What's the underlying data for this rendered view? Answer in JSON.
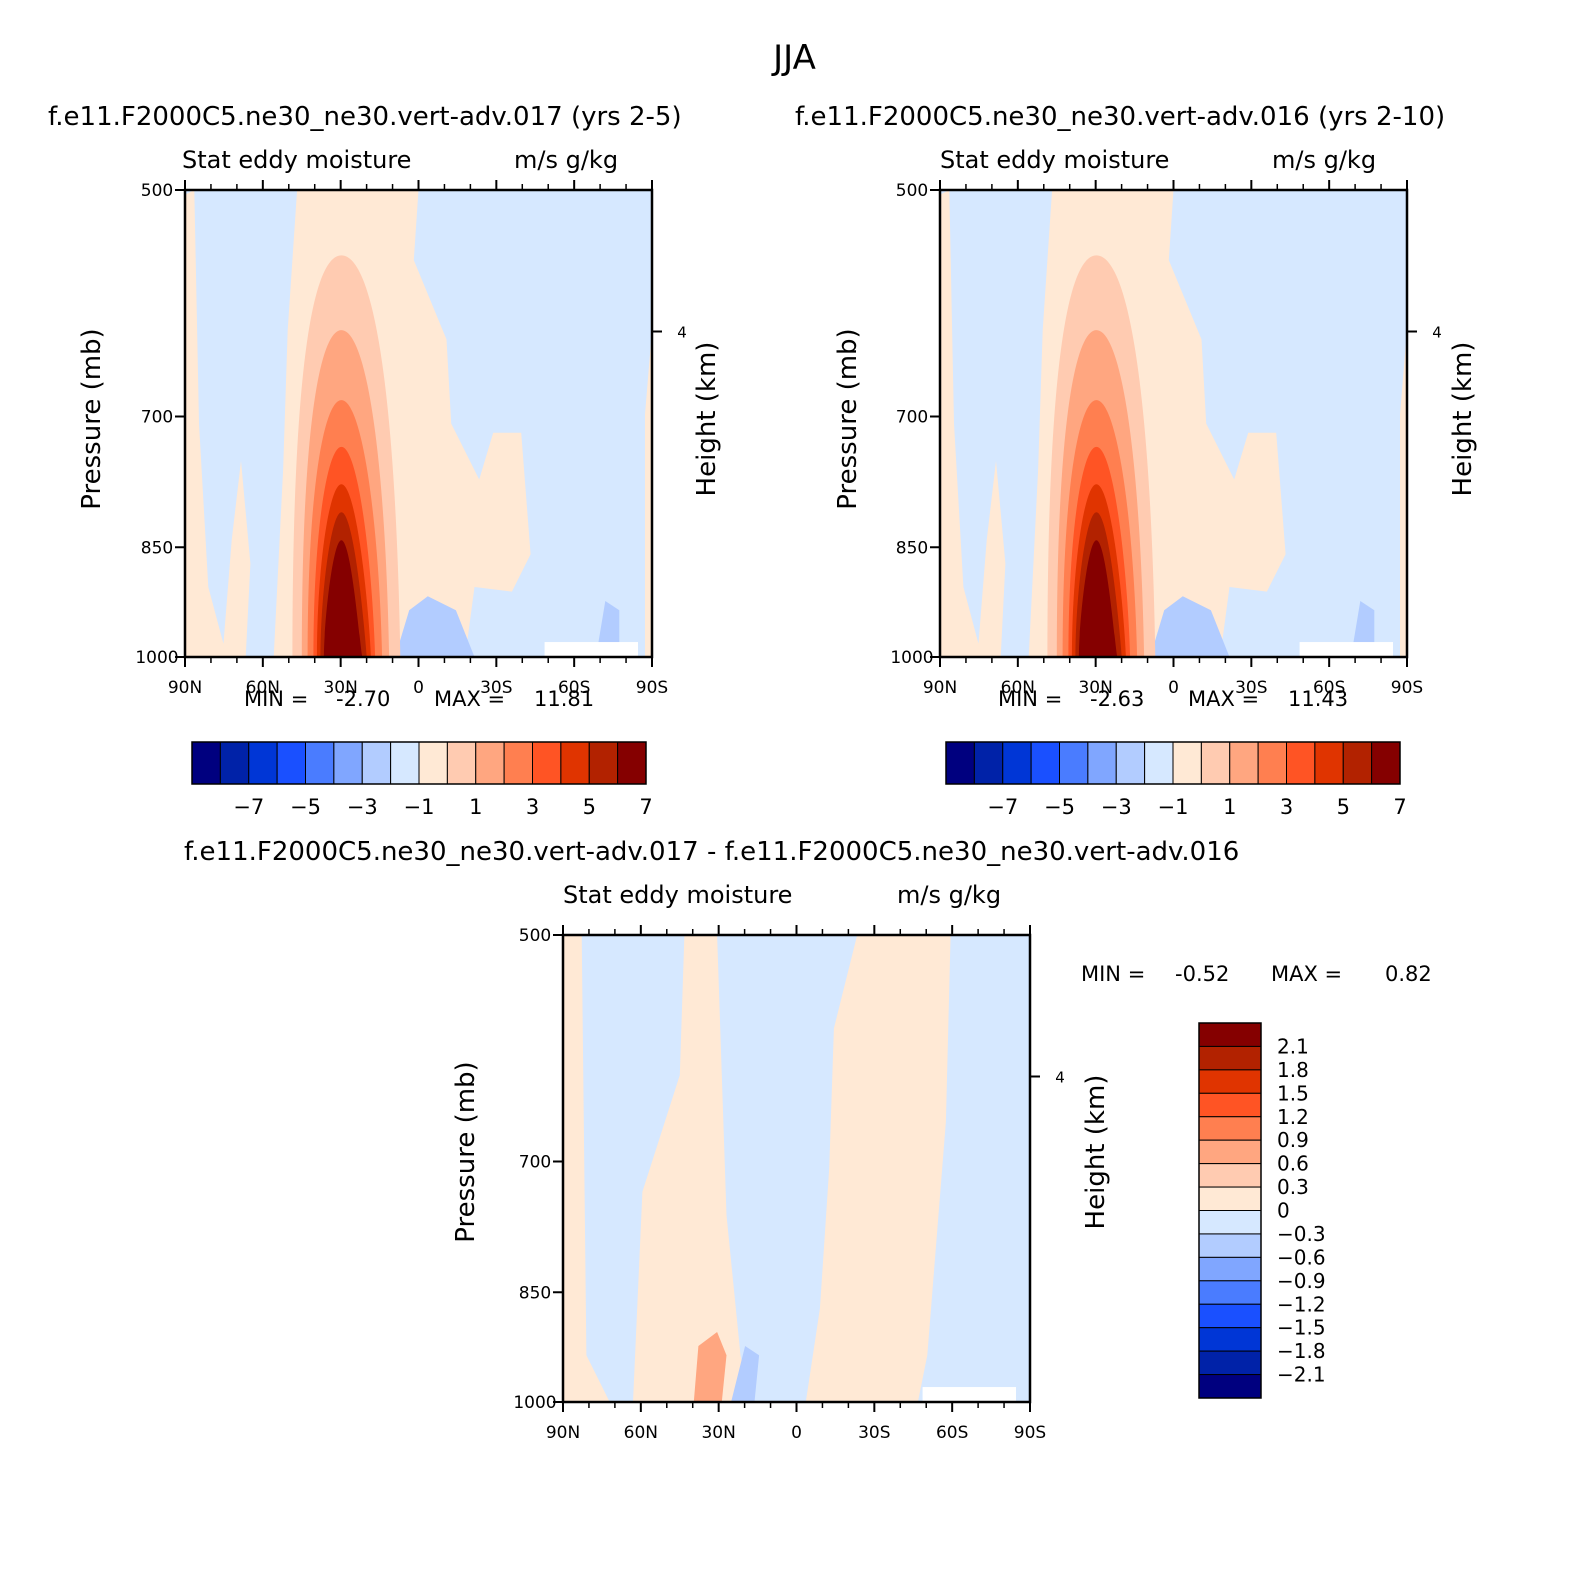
{
  "title": "JJA",
  "colors": {
    "diverging": [
      "#00007f",
      "#0022a8",
      "#0036d6",
      "#1a50ff",
      "#4a7cff",
      "#80a6ff",
      "#b2ccff",
      "#d6e8ff",
      "#ffe9d5",
      "#ffcbb1",
      "#ffa680",
      "#ff7f50",
      "#ff5424",
      "#e03400",
      "#b22200",
      "#850000"
    ]
  },
  "chart_data": [
    {
      "type": "contour",
      "title": "f.e11.F2000C5.ne30_ne30.vert-adv.017 (yrs 2-5)",
      "left_subtitle": "Stat eddy moisture",
      "right_subtitle": "m/s g/kg",
      "ylabel": "Pressure (mb)",
      "y2label": "Height (km)",
      "x_ticks": [
        "90N",
        "60N",
        "30N",
        "0",
        "30S",
        "60S",
        "90S"
      ],
      "y_ticks": [
        "500",
        "700",
        "850",
        "1000"
      ],
      "y2_ticks": [
        "4"
      ],
      "ylim": [
        1000,
        500
      ],
      "min_label": "MIN =",
      "min_value": "-2.70",
      "max_label": "MAX =",
      "max_value": "11.81",
      "colorbar_labels": [
        "-7",
        "-5",
        "-3",
        "-1",
        "1",
        "3",
        "5",
        "7"
      ],
      "levels": [
        -7,
        -6,
        -5,
        -4,
        -3,
        -2,
        -1,
        0,
        1,
        2,
        3,
        4,
        5,
        6,
        7
      ],
      "max_contour_level": 7
    },
    {
      "type": "contour",
      "title": "f.e11.F2000C5.ne30_ne30.vert-adv.016 (yrs 2-10)",
      "left_subtitle": "Stat eddy moisture",
      "right_subtitle": "m/s g/kg",
      "ylabel": "Pressure (mb)",
      "y2label": "Height (km)",
      "x_ticks": [
        "90N",
        "60N",
        "30N",
        "0",
        "30S",
        "60S",
        "90S"
      ],
      "y_ticks": [
        "500",
        "700",
        "850",
        "1000"
      ],
      "y2_ticks": [
        "4"
      ],
      "ylim": [
        1000,
        500
      ],
      "min_label": "MIN =",
      "min_value": "-2.63",
      "max_label": "MAX =",
      "max_value": "11.43",
      "colorbar_labels": [
        "-7",
        "-5",
        "-3",
        "-1",
        "1",
        "3",
        "5",
        "7"
      ],
      "levels": [
        -7,
        -6,
        -5,
        -4,
        -3,
        -2,
        -1,
        0,
        1,
        2,
        3,
        4,
        5,
        6,
        7
      ],
      "max_contour_level": 7
    },
    {
      "type": "contour",
      "title": "f.e11.F2000C5.ne30_ne30.vert-adv.017 - f.e11.F2000C5.ne30_ne30.vert-adv.016",
      "left_subtitle": "Stat eddy moisture",
      "right_subtitle": "m/s g/kg",
      "ylabel": "Pressure (mb)",
      "y2label": "Height (km)",
      "x_ticks": [
        "90N",
        "60N",
        "30N",
        "0",
        "30S",
        "60S",
        "90S"
      ],
      "y_ticks": [
        "500",
        "700",
        "850",
        "1000"
      ],
      "y2_ticks": [
        "4"
      ],
      "ylim": [
        1000,
        500
      ],
      "min_label": "MIN =",
      "min_value": "-0.52",
      "max_label": "MAX =",
      "max_value": "0.82",
      "colorbar_labels": [
        "2.1",
        "1.8",
        "1.5",
        "1.2",
        "0.9",
        "0.6",
        "0.3",
        "0",
        "-0.3",
        "-0.6",
        "-0.9",
        "-1.2",
        "-1.5",
        "-1.8",
        "-2.1"
      ],
      "levels": [
        -2.1,
        -1.8,
        -1.5,
        -1.2,
        -0.9,
        -0.6,
        -0.3,
        0,
        0.3,
        0.6,
        0.9,
        1.2,
        1.5,
        1.8,
        2.1
      ]
    }
  ]
}
